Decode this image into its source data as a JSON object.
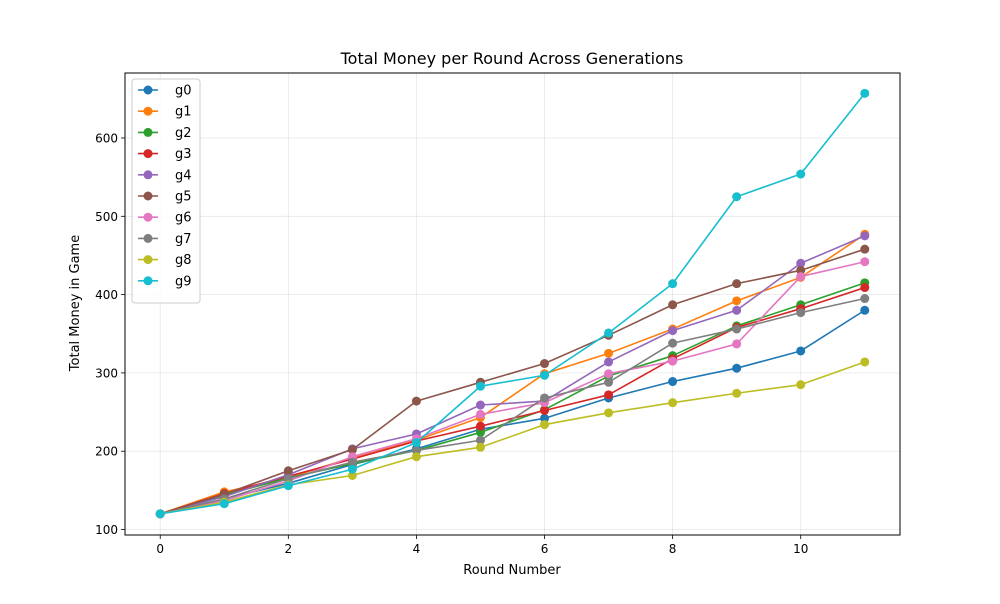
{
  "chart_data": {
    "type": "line",
    "title": "Total Money per Round Across Generations",
    "xlabel": "Round Number",
    "ylabel": "Total Money in Game",
    "xlim": [
      -0.55,
      11.55
    ],
    "ylim": [
      93,
      683
    ],
    "xticks": [
      0,
      2,
      4,
      6,
      8,
      10
    ],
    "yticks": [
      100,
      200,
      300,
      400,
      500,
      600
    ],
    "grid": true,
    "legend_position": "upper-left",
    "x": [
      0,
      1,
      2,
      3,
      4,
      5,
      6,
      7,
      8,
      9,
      10,
      11
    ],
    "series": [
      {
        "name": "g0",
        "color": "#1f77b4",
        "values": [
          120,
          139,
          159,
          183,
          203,
          228,
          242,
          268,
          289,
          306,
          328,
          380
        ]
      },
      {
        "name": "g1",
        "color": "#ff7f0e",
        "values": [
          120,
          148,
          166,
          192,
          214,
          243,
          299,
          325,
          356,
          392,
          422,
          477
        ]
      },
      {
        "name": "g2",
        "color": "#2ca02c",
        "values": [
          120,
          144,
          166,
          184,
          201,
          224,
          253,
          296,
          322,
          360,
          387,
          415
        ]
      },
      {
        "name": "g3",
        "color": "#d62728",
        "values": [
          120,
          146,
          168,
          190,
          213,
          232,
          252,
          272,
          318,
          358,
          382,
          409
        ]
      },
      {
        "name": "g4",
        "color": "#9467bd",
        "values": [
          120,
          142,
          170,
          203,
          222,
          259,
          264,
          314,
          354,
          380,
          440,
          475
        ]
      },
      {
        "name": "g5",
        "color": "#8c564b",
        "values": [
          120,
          145,
          175,
          202,
          264,
          288,
          312,
          348,
          387,
          414,
          431,
          458
        ]
      },
      {
        "name": "g6",
        "color": "#e377c2",
        "values": [
          120,
          137,
          162,
          193,
          216,
          247,
          262,
          299,
          315,
          337,
          423,
          442
        ]
      },
      {
        "name": "g7",
        "color": "#7f7f7f",
        "values": [
          120,
          139,
          165,
          186,
          201,
          214,
          268,
          288,
          338,
          356,
          377,
          395
        ]
      },
      {
        "name": "g8",
        "color": "#bcbd22",
        "values": [
          120,
          135,
          157,
          169,
          193,
          205,
          234,
          249,
          262,
          274,
          285,
          314
        ]
      },
      {
        "name": "g9",
        "color": "#17becf",
        "values": [
          120,
          133,
          156,
          177,
          211,
          283,
          297,
          351,
          414,
          525,
          554,
          657
        ]
      }
    ]
  }
}
